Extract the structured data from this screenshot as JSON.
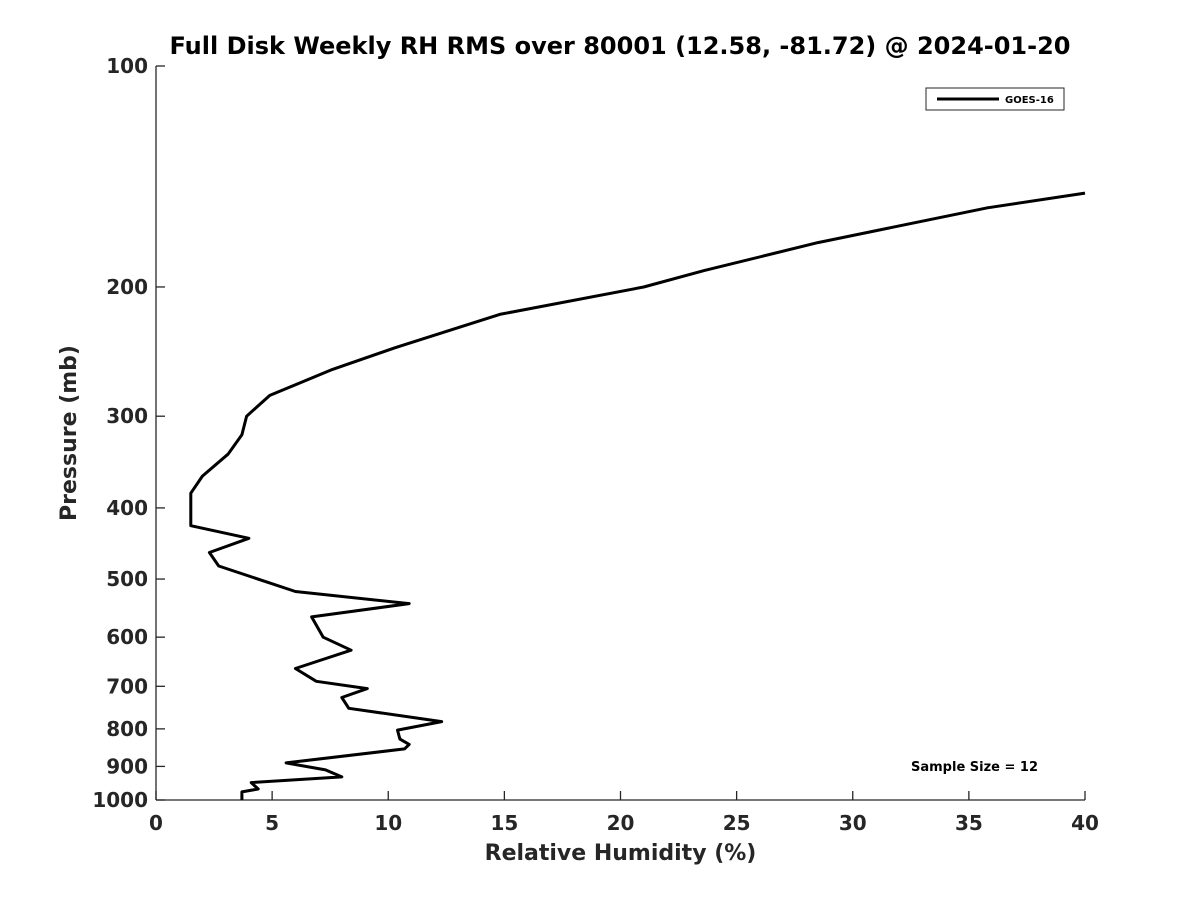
{
  "chart_data": {
    "type": "line",
    "title": "Full Disk Weekly RH RMS over 80001 (12.58, -81.72) @ 2024-01-20",
    "xlabel": "Relative Humidity (%)",
    "ylabel": "Pressure (mb)",
    "xlim": [
      0,
      40
    ],
    "ylim": [
      100,
      1000
    ],
    "y_scale": "log",
    "y_reversed": true,
    "grid": false,
    "legend_position": "top-right",
    "x_ticks": [
      "0",
      "5",
      "10",
      "15",
      "20",
      "25",
      "30",
      "35",
      "40"
    ],
    "y_ticks": [
      "100",
      "200",
      "300",
      "400",
      "500",
      "600",
      "700",
      "800",
      "900",
      "1000"
    ],
    "annotation": "Sample Size = 12",
    "series": [
      {
        "name": "GOES-16",
        "color": "#000000",
        "points": [
          [
            40.0,
            149
          ],
          [
            35.8,
            156
          ],
          [
            28.5,
            174
          ],
          [
            23.6,
            190
          ],
          [
            21.0,
            200
          ],
          [
            14.8,
            218
          ],
          [
            10.3,
            242
          ],
          [
            7.6,
            259
          ],
          [
            4.9,
            281
          ],
          [
            3.9,
            300
          ],
          [
            3.7,
            318
          ],
          [
            3.1,
            338
          ],
          [
            2.0,
            362
          ],
          [
            1.5,
            382
          ],
          [
            1.5,
            423
          ],
          [
            4.0,
            440
          ],
          [
            2.3,
            460
          ],
          [
            2.7,
            480
          ],
          [
            6.0,
            520
          ],
          [
            10.9,
            540
          ],
          [
            6.7,
            563
          ],
          [
            7.2,
            600
          ],
          [
            8.4,
            625
          ],
          [
            6.0,
            662
          ],
          [
            6.9,
            689
          ],
          [
            9.1,
            705
          ],
          [
            8.0,
            725
          ],
          [
            8.3,
            750
          ],
          [
            12.3,
            782
          ],
          [
            10.4,
            803
          ],
          [
            10.5,
            826
          ],
          [
            10.9,
            840
          ],
          [
            10.7,
            852
          ],
          [
            5.6,
            890
          ],
          [
            7.3,
            910
          ],
          [
            8.0,
            930
          ],
          [
            4.1,
            947
          ],
          [
            4.4,
            966
          ],
          [
            3.7,
            975
          ],
          [
            3.7,
            1000
          ]
        ]
      }
    ]
  }
}
